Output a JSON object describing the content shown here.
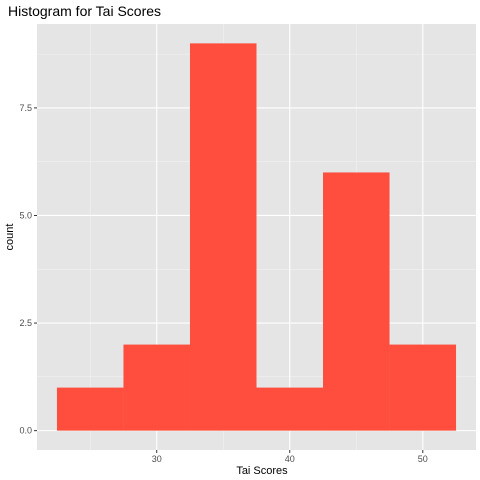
{
  "chart_data": {
    "type": "bar",
    "title": "Histogram for Tai Scores",
    "xlabel": "Tai Scores",
    "ylabel": "count",
    "bins": [
      {
        "x0": 22.5,
        "x1": 27.5,
        "count": 1
      },
      {
        "x0": 27.5,
        "x1": 32.5,
        "count": 2
      },
      {
        "x0": 32.5,
        "x1": 37.5,
        "count": 9
      },
      {
        "x0": 37.5,
        "x1": 42.5,
        "count": 1
      },
      {
        "x0": 42.5,
        "x1": 47.5,
        "count": 6
      },
      {
        "x0": 47.5,
        "x1": 52.5,
        "count": 2
      }
    ],
    "x_ticks": [
      30,
      40,
      50
    ],
    "x_tick_labels": [
      "30",
      "40",
      "50"
    ],
    "y_ticks": [
      0,
      2.5,
      5,
      7.5
    ],
    "y_tick_labels": [
      "0.0",
      "2.5",
      "5.0",
      "7.5"
    ],
    "xlim": [
      21,
      54
    ],
    "ylim": [
      -0.45,
      9.45
    ],
    "grid": true,
    "colors": {
      "bar": "#FF4E3D",
      "panel": "#E5E5E5",
      "grid_major": "#FFFFFF",
      "grid_minor": "#F2F2F2"
    }
  }
}
